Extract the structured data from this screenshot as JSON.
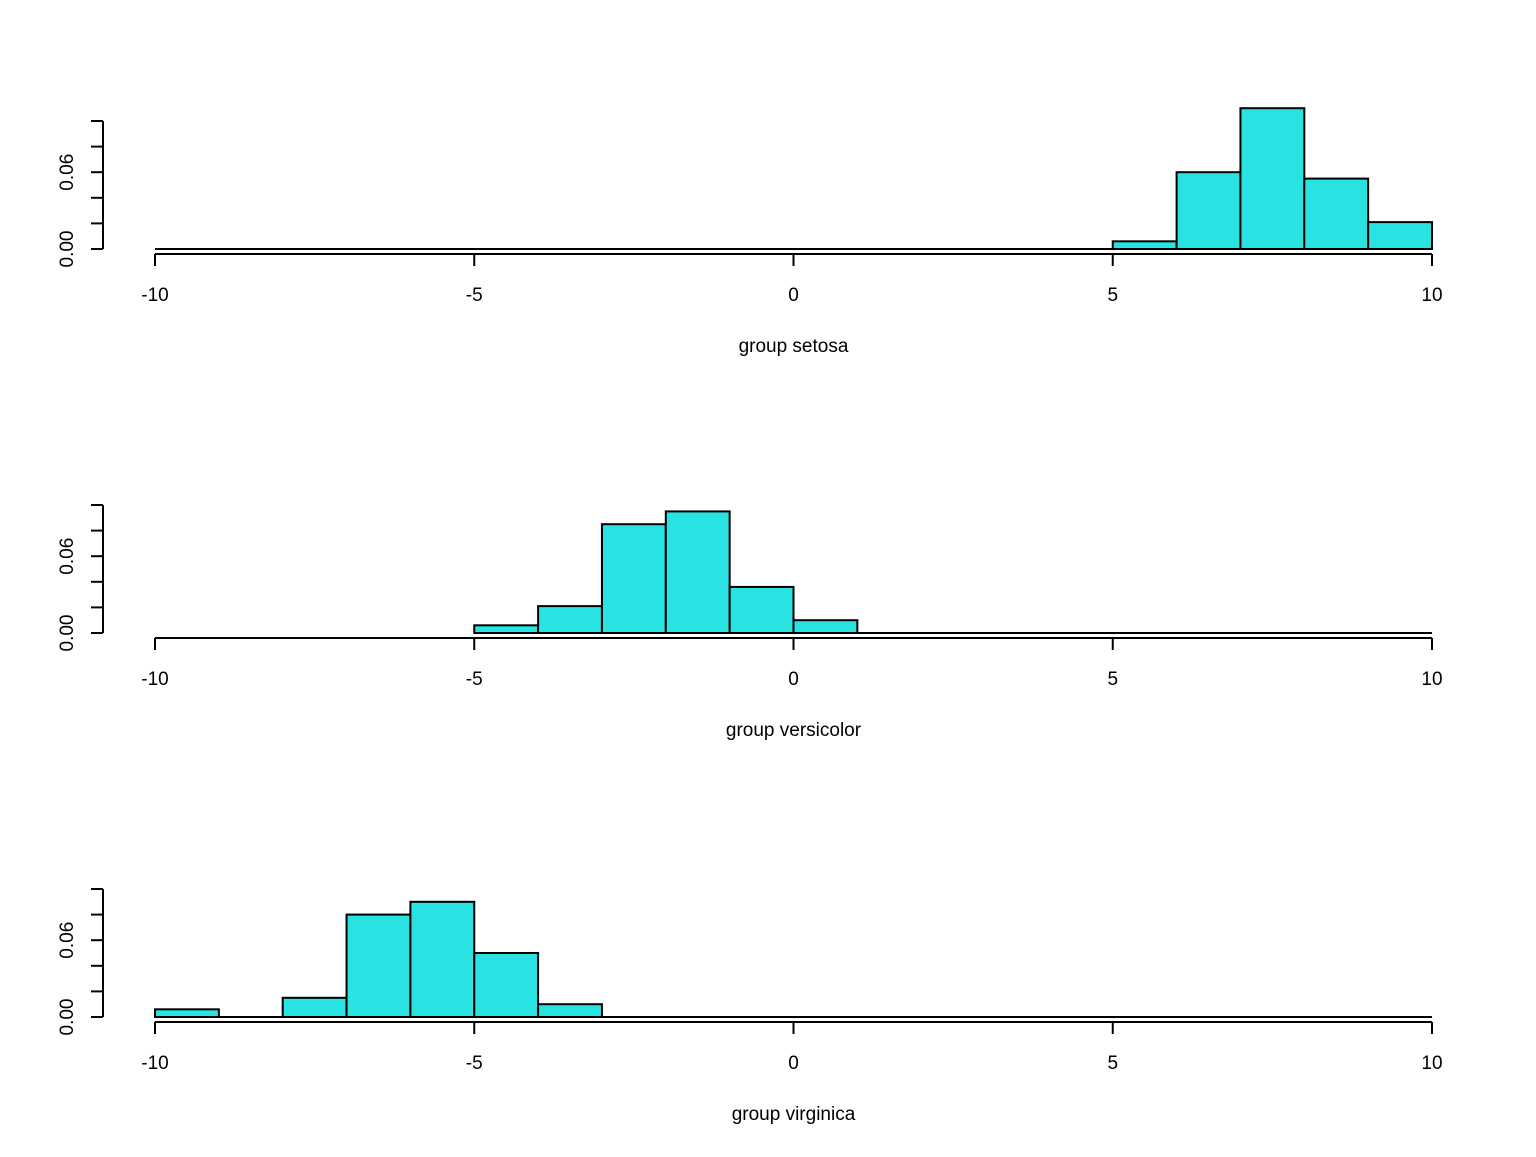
{
  "colors": {
    "bar_fill": "#29E3E3",
    "bar_stroke": "#000000",
    "axis": "#000000"
  },
  "chart_data": [
    {
      "type": "bar",
      "xlabel": "group setosa",
      "xlim": [
        -10,
        10
      ],
      "ylim": [
        0,
        0.1
      ],
      "x_ticks": [
        -10,
        -5,
        0,
        5,
        10
      ],
      "x_tick_labels": [
        "-10",
        "-5",
        "0",
        "5",
        "10"
      ],
      "y_ticks": [
        0,
        0.02,
        0.04,
        0.06,
        0.08,
        0.1
      ],
      "y_tick_labels": [
        "0.00",
        "",
        "",
        "0.06",
        "",
        ""
      ],
      "bins": [
        {
          "from": -10,
          "to": 5,
          "density": 0
        },
        {
          "from": 5,
          "to": 6,
          "density": 0.006
        },
        {
          "from": 6,
          "to": 7,
          "density": 0.06
        },
        {
          "from": 7,
          "to": 8,
          "density": 0.11
        },
        {
          "from": 8,
          "to": 9,
          "density": 0.055
        },
        {
          "from": 9,
          "to": 10,
          "density": 0.021
        }
      ]
    },
    {
      "type": "bar",
      "xlabel": "group versicolor",
      "xlim": [
        -10,
        10
      ],
      "ylim": [
        0,
        0.1
      ],
      "x_ticks": [
        -10,
        -5,
        0,
        5,
        10
      ],
      "x_tick_labels": [
        "-10",
        "-5",
        "0",
        "5",
        "10"
      ],
      "y_ticks": [
        0,
        0.02,
        0.04,
        0.06,
        0.08,
        0.1
      ],
      "y_tick_labels": [
        "0.00",
        "",
        "",
        "0.06",
        "",
        ""
      ],
      "bins": [
        {
          "from": -5,
          "to": -4,
          "density": 0.006
        },
        {
          "from": -4,
          "to": -3,
          "density": 0.021
        },
        {
          "from": -3,
          "to": -2,
          "density": 0.085
        },
        {
          "from": -2,
          "to": -1,
          "density": 0.095
        },
        {
          "from": -1,
          "to": 0,
          "density": 0.036
        },
        {
          "from": 0,
          "to": 1,
          "density": 0.01
        },
        {
          "from": 1,
          "to": 10,
          "density": 0
        }
      ]
    },
    {
      "type": "bar",
      "xlabel": "group virginica",
      "xlim": [
        -10,
        10
      ],
      "ylim": [
        0,
        0.1
      ],
      "x_ticks": [
        -10,
        -5,
        0,
        5,
        10
      ],
      "x_tick_labels": [
        "-10",
        "-5",
        "0",
        "5",
        "10"
      ],
      "y_ticks": [
        0,
        0.02,
        0.04,
        0.06,
        0.08,
        0.1
      ],
      "y_tick_labels": [
        "0.00",
        "",
        "",
        "0.06",
        "",
        ""
      ],
      "bins": [
        {
          "from": -10,
          "to": -9,
          "density": 0.006
        },
        {
          "from": -8,
          "to": -7,
          "density": 0.015
        },
        {
          "from": -7,
          "to": -6,
          "density": 0.08
        },
        {
          "from": -6,
          "to": -5,
          "density": 0.09
        },
        {
          "from": -5,
          "to": -4,
          "density": 0.05
        },
        {
          "from": -4,
          "to": -3,
          "density": 0.01
        },
        {
          "from": -3,
          "to": 10,
          "density": 0
        }
      ]
    }
  ]
}
